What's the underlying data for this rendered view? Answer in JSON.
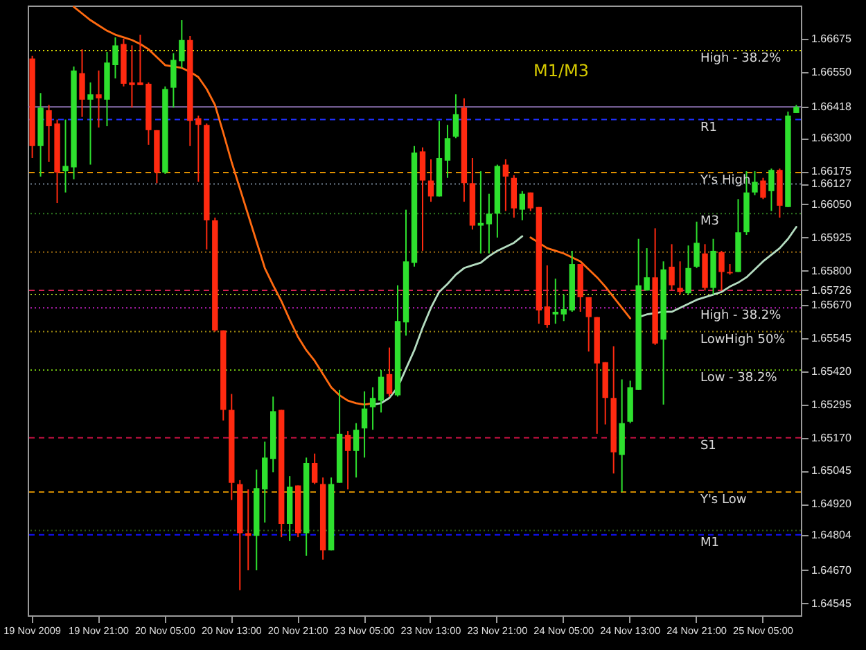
{
  "chart_data": {
    "type": "candlestick",
    "categories": [
      "19 Nov 2009",
      null,
      null,
      null,
      null,
      null,
      null,
      null,
      "19 Nov 21:00",
      null,
      null,
      null,
      null,
      null,
      null,
      null,
      "20 Nov 05:00",
      null,
      null,
      null,
      null,
      null,
      null,
      null,
      "20 Nov 13:00",
      null,
      null,
      null,
      null,
      null,
      null,
      null,
      "20 Nov 21:00",
      null,
      null,
      null,
      null,
      null,
      null,
      null,
      "23 Nov 05:00",
      null,
      null,
      null,
      null,
      null,
      null,
      null,
      "23 Nov 13:00",
      null,
      null,
      null,
      null,
      null,
      null,
      null,
      "23 Nov 21:00",
      null,
      null,
      null,
      null,
      null,
      null,
      null,
      "24 Nov 05:00",
      null,
      null,
      null,
      null,
      null,
      null,
      null,
      "24 Nov 13:00",
      null,
      null,
      null,
      null,
      null,
      null,
      null,
      "24 Nov 21:00",
      null,
      null,
      null,
      null,
      null,
      null,
      null,
      "25 Nov 05:00",
      null,
      null,
      null,
      null
    ],
    "ohlc": [
      [
        1.666,
        1.6661,
        1.66225,
        1.6627
      ],
      [
        1.6627,
        1.6647,
        1.66155,
        1.66415
      ],
      [
        1.66405,
        1.66425,
        1.6621,
        1.66345
      ],
      [
        1.66355,
        1.6637,
        1.66055,
        1.6617
      ],
      [
        1.66175,
        1.6637,
        1.66095,
        1.66195
      ],
      [
        1.6619,
        1.6657,
        1.66145,
        1.66555
      ],
      [
        1.66545,
        1.66635,
        1.6638,
        1.66445
      ],
      [
        1.66445,
        1.6651,
        1.662,
        1.66465
      ],
      [
        1.66465,
        1.66555,
        1.6634,
        1.6645
      ],
      [
        1.66445,
        1.66625,
        1.66345,
        1.66585
      ],
      [
        1.66575,
        1.6668,
        1.66525,
        1.6665
      ],
      [
        1.66655,
        1.66675,
        1.66495,
        1.66505
      ],
      [
        1.6651,
        1.6665,
        1.66415,
        1.665
      ],
      [
        1.6651,
        1.6669,
        1.665,
        1.665
      ],
      [
        1.66505,
        1.6651,
        1.66275,
        1.6633
      ],
      [
        1.6633,
        1.6633,
        1.6613,
        1.6617
      ],
      [
        1.6617,
        1.66495,
        1.66165,
        1.66485
      ],
      [
        1.6649,
        1.6662,
        1.66415,
        1.66595
      ],
      [
        1.6659,
        1.66745,
        1.66565,
        1.6667
      ],
      [
        1.6667,
        1.66685,
        1.6627,
        1.66365
      ],
      [
        1.66375,
        1.66385,
        1.66135,
        1.6635
      ],
      [
        1.6635,
        1.66355,
        1.6588,
        1.6599
      ],
      [
        1.6599,
        1.66,
        1.6557,
        1.65575
      ],
      [
        1.65575,
        1.65575,
        1.65235,
        1.65275
      ],
      [
        1.65275,
        1.65335,
        1.64935,
        1.65
      ],
      [
        1.64995,
        1.6501,
        1.64595,
        1.6481
      ],
      [
        1.6481,
        1.64975,
        1.6467,
        1.648
      ],
      [
        1.648,
        1.6505,
        1.6467,
        1.6498
      ],
      [
        1.64975,
        1.65155,
        1.6485,
        1.65095
      ],
      [
        1.6509,
        1.65325,
        1.6504,
        1.6527
      ],
      [
        1.65275,
        1.65275,
        1.64795,
        1.64845
      ],
      [
        1.64845,
        1.65025,
        1.6478,
        1.64985
      ],
      [
        1.6499,
        1.6499,
        1.64795,
        1.6481
      ],
      [
        1.6481,
        1.65095,
        1.64725,
        1.65075
      ],
      [
        1.65075,
        1.6511,
        1.64995,
        1.65
      ],
      [
        1.64995,
        1.6502,
        1.6471,
        1.64745
      ],
      [
        1.64745,
        1.6502,
        1.64745,
        1.64995
      ],
      [
        1.65,
        1.6535,
        1.65,
        1.65185
      ],
      [
        1.6518,
        1.65195,
        1.64975,
        1.6512
      ],
      [
        1.6512,
        1.65225,
        1.6502,
        1.652
      ],
      [
        1.65205,
        1.65345,
        1.65095,
        1.6528
      ],
      [
        1.65285,
        1.6536,
        1.652,
        1.6532
      ],
      [
        1.6531,
        1.65425,
        1.65265,
        1.654
      ],
      [
        1.6541,
        1.6551,
        1.65325,
        1.65335
      ],
      [
        1.6533,
        1.65745,
        1.65325,
        1.6561
      ],
      [
        1.65605,
        1.6603,
        1.65555,
        1.65835
      ],
      [
        1.6583,
        1.6627,
        1.65815,
        1.66245
      ],
      [
        1.6625,
        1.66265,
        1.65875,
        1.6614
      ],
      [
        1.6614,
        1.6622,
        1.6606,
        1.6608
      ],
      [
        1.6608,
        1.66365,
        1.6608,
        1.66225
      ],
      [
        1.66215,
        1.6635,
        1.6615,
        1.663
      ],
      [
        1.66305,
        1.66465,
        1.663,
        1.6639
      ],
      [
        1.66415,
        1.6645,
        1.6606,
        1.6613
      ],
      [
        1.6613,
        1.66225,
        1.65955,
        1.6597
      ],
      [
        1.6597,
        1.66175,
        1.65865,
        1.6598
      ],
      [
        1.65975,
        1.6609,
        1.65865,
        1.66015
      ],
      [
        1.66015,
        1.662,
        1.65925,
        1.66195
      ],
      [
        1.662,
        1.6622,
        1.66025,
        1.66155
      ],
      [
        1.6615,
        1.6616,
        1.66,
        1.66035
      ],
      [
        1.6603,
        1.661,
        1.6599,
        1.6609
      ],
      [
        1.66095,
        1.66095,
        1.66025,
        1.66035
      ],
      [
        1.6604,
        1.6604,
        1.656,
        1.6565
      ],
      [
        1.65665,
        1.6582,
        1.65585,
        1.65595
      ],
      [
        1.65635,
        1.6577,
        1.656,
        1.65645
      ],
      [
        1.65635,
        1.6571,
        1.6561,
        1.65655
      ],
      [
        1.6565,
        1.65875,
        1.65645,
        1.65825
      ],
      [
        1.65825,
        1.65825,
        1.65645,
        1.657
      ],
      [
        1.657,
        1.657,
        1.65495,
        1.65625
      ],
      [
        1.65625,
        1.65625,
        1.65185,
        1.6545
      ],
      [
        1.65455,
        1.65455,
        1.6522,
        1.6532
      ],
      [
        1.6532,
        1.65515,
        1.65035,
        1.65115
      ],
      [
        1.65105,
        1.6539,
        1.64965,
        1.65225
      ],
      [
        1.6523,
        1.65385,
        1.65225,
        1.6536
      ],
      [
        1.6535,
        1.6592,
        1.6535,
        1.65745
      ],
      [
        1.65725,
        1.65885,
        1.65725,
        1.65775
      ],
      [
        1.65775,
        1.6596,
        1.6552,
        1.65525
      ],
      [
        1.6554,
        1.65835,
        1.65295,
        1.65805
      ],
      [
        1.65815,
        1.659,
        1.65725,
        1.65745
      ],
      [
        1.65735,
        1.65835,
        1.6571,
        1.6572
      ],
      [
        1.65715,
        1.65895,
        1.6571,
        1.6581
      ],
      [
        1.65815,
        1.65985,
        1.6581,
        1.65905
      ],
      [
        1.65865,
        1.659,
        1.65725,
        1.65735
      ],
      [
        1.65735,
        1.6592,
        1.6571,
        1.65875
      ],
      [
        1.6587,
        1.65875,
        1.65725,
        1.65795
      ],
      [
        1.65795,
        1.65825,
        1.65785,
        1.6579
      ],
      [
        1.65795,
        1.6607,
        1.65795,
        1.65945
      ],
      [
        1.65945,
        1.66175,
        1.65935,
        1.66095
      ],
      [
        1.66095,
        1.66175,
        1.66085,
        1.66135
      ],
      [
        1.6614,
        1.6615,
        1.6607,
        1.66075
      ],
      [
        1.661,
        1.66185,
        1.66025,
        1.6618
      ],
      [
        1.6618,
        1.66185,
        1.66,
        1.66045
      ],
      [
        1.6604,
        1.664,
        1.6604,
        1.66385
      ],
      [
        1.66395,
        1.66425,
        1.66395,
        1.66418
      ]
    ],
    "series": [
      {
        "type": "line",
        "color": "#ff6a10",
        "values": [
          null,
          null,
          null,
          null,
          null,
          1.66795,
          1.6677,
          1.66745,
          1.66725,
          1.66705,
          1.6669,
          1.6668,
          1.6667,
          1.66655,
          1.66635,
          1.66605,
          1.66575,
          1.6657,
          1.66565,
          1.6655,
          1.6653,
          1.66485,
          1.66425,
          1.6632,
          1.6621,
          1.6611,
          1.6601,
          1.6591,
          1.6581,
          1.65745,
          1.65685,
          1.65615,
          1.6555,
          1.655,
          1.6546,
          1.6541,
          1.6536,
          1.6533,
          1.6531,
          1.653,
          1.65295,
          1.653,
          null,
          null,
          null,
          null,
          null,
          null,
          null,
          null,
          null,
          null,
          null,
          null,
          null,
          null,
          null,
          null,
          null,
          null,
          1.65925,
          1.65905,
          1.65885,
          1.65875,
          1.65865,
          1.6585,
          1.65835,
          1.65805,
          1.65775,
          1.6574,
          1.657,
          1.6566,
          1.6562,
          null,
          null,
          null,
          null,
          null,
          null,
          null,
          null,
          null,
          null,
          null,
          null,
          null,
          null,
          null,
          null,
          null,
          null,
          null,
          null
        ]
      },
      {
        "type": "line",
        "color": "#b4dcc0",
        "values": [
          null,
          null,
          null,
          null,
          null,
          null,
          null,
          null,
          null,
          null,
          null,
          null,
          null,
          null,
          null,
          null,
          null,
          null,
          null,
          null,
          null,
          null,
          null,
          null,
          null,
          null,
          null,
          null,
          null,
          null,
          null,
          null,
          null,
          null,
          null,
          null,
          null,
          null,
          null,
          null,
          null,
          1.65295,
          1.653,
          1.6532,
          1.6536,
          1.6543,
          1.655,
          1.65585,
          1.6566,
          1.6572,
          1.6575,
          1.65785,
          1.6581,
          1.6582,
          1.6583,
          1.65855,
          1.65875,
          1.6589,
          1.65905,
          1.6593,
          null,
          null,
          null,
          null,
          null,
          null,
          null,
          null,
          null,
          null,
          null,
          null,
          null,
          1.65625,
          1.65635,
          1.6564,
          1.65645,
          1.65645,
          1.6566,
          1.65675,
          1.6569,
          1.657,
          1.6571,
          1.6572,
          1.6574,
          1.65755,
          1.65775,
          1.65805,
          1.65835,
          1.6586,
          1.65885,
          1.6592,
          1.65965
        ]
      }
    ],
    "ylim": [
      1.645,
      1.668
    ],
    "yticks": [
      1.66675,
      {
        "value": 1.6655,
        "label": "1.66550"
      },
      1.66418,
      {
        "value": 1.663,
        "label": "1.66300"
      },
      1.66175,
      1.66127,
      {
        "value": 1.6605,
        "label": "1.66050"
      },
      1.65925,
      {
        "value": 1.658,
        "label": "1.65800"
      },
      1.65726,
      {
        "value": 1.6567,
        "label": "1.65670"
      },
      1.65545,
      {
        "value": 1.6542,
        "label": "1.65420"
      },
      1.65295,
      {
        "value": 1.6517,
        "label": "1.65170"
      },
      1.65045,
      {
        "value": 1.6492,
        "label": "1.64920"
      },
      1.64804,
      {
        "value": 1.6467,
        "label": "1.64670"
      },
      1.64545
    ],
    "ref_lines": [
      {
        "axis": "y",
        "value": 1.6663,
        "label": "High - 38.2%",
        "color": "#d8d800",
        "line_style": "dotted"
      },
      {
        "axis": "y",
        "value": 1.66418,
        "label": null,
        "color": "#8a70b0",
        "line_style": "solid"
      },
      {
        "axis": "y",
        "value": 1.6637,
        "label": "R1",
        "color": "#2030ff",
        "line_style": "dashed"
      },
      {
        "axis": "y",
        "value": 1.6617,
        "label": "Y's High",
        "color": "#e09000",
        "line_style": "dashed"
      },
      {
        "axis": "y",
        "value": 1.66127,
        "label": null,
        "color": "#708090",
        "line_style": "dotted"
      },
      {
        "axis": "y",
        "value": 1.66015,
        "label": "M3",
        "color": "#2f7a20",
        "line_style": "dotted"
      },
      {
        "axis": "y",
        "value": 1.6587,
        "label": null,
        "color": "#9a6a10",
        "line_style": "dotted"
      },
      {
        "axis": "y",
        "value": 1.65726,
        "label": null,
        "color": "#d02050",
        "line_style": "dashed"
      },
      {
        "axis": "y",
        "value": 1.6571,
        "label": null,
        "color": "#a0c020",
        "line_style": "dotted"
      },
      {
        "axis": "y",
        "value": 1.6566,
        "label": "High - 38.2%",
        "color": "#c020c0",
        "line_style": "dotted"
      },
      {
        "axis": "y",
        "value": 1.6557,
        "label": "LowHigh 50%",
        "color": "#a08a10",
        "line_style": "dotted"
      },
      {
        "axis": "y",
        "value": 1.65425,
        "label": "Low - 38.2%",
        "color": "#70c010",
        "line_style": "dotted"
      },
      {
        "axis": "y",
        "value": 1.6517,
        "label": "S1",
        "color": "#c01040",
        "line_style": "dashed"
      },
      {
        "axis": "y",
        "value": 1.64965,
        "label": "Y's Low",
        "color": "#d08a00",
        "line_style": "dashed"
      },
      {
        "axis": "y",
        "value": 1.6482,
        "label": null,
        "color": "#2f5a1a",
        "line_style": "dotted"
      },
      {
        "axis": "y",
        "value": 1.64804,
        "label": "M1",
        "color": "#1010ff",
        "line_style": "dashed"
      }
    ],
    "annotations": [
      "M1/M3"
    ],
    "grid": false
  }
}
